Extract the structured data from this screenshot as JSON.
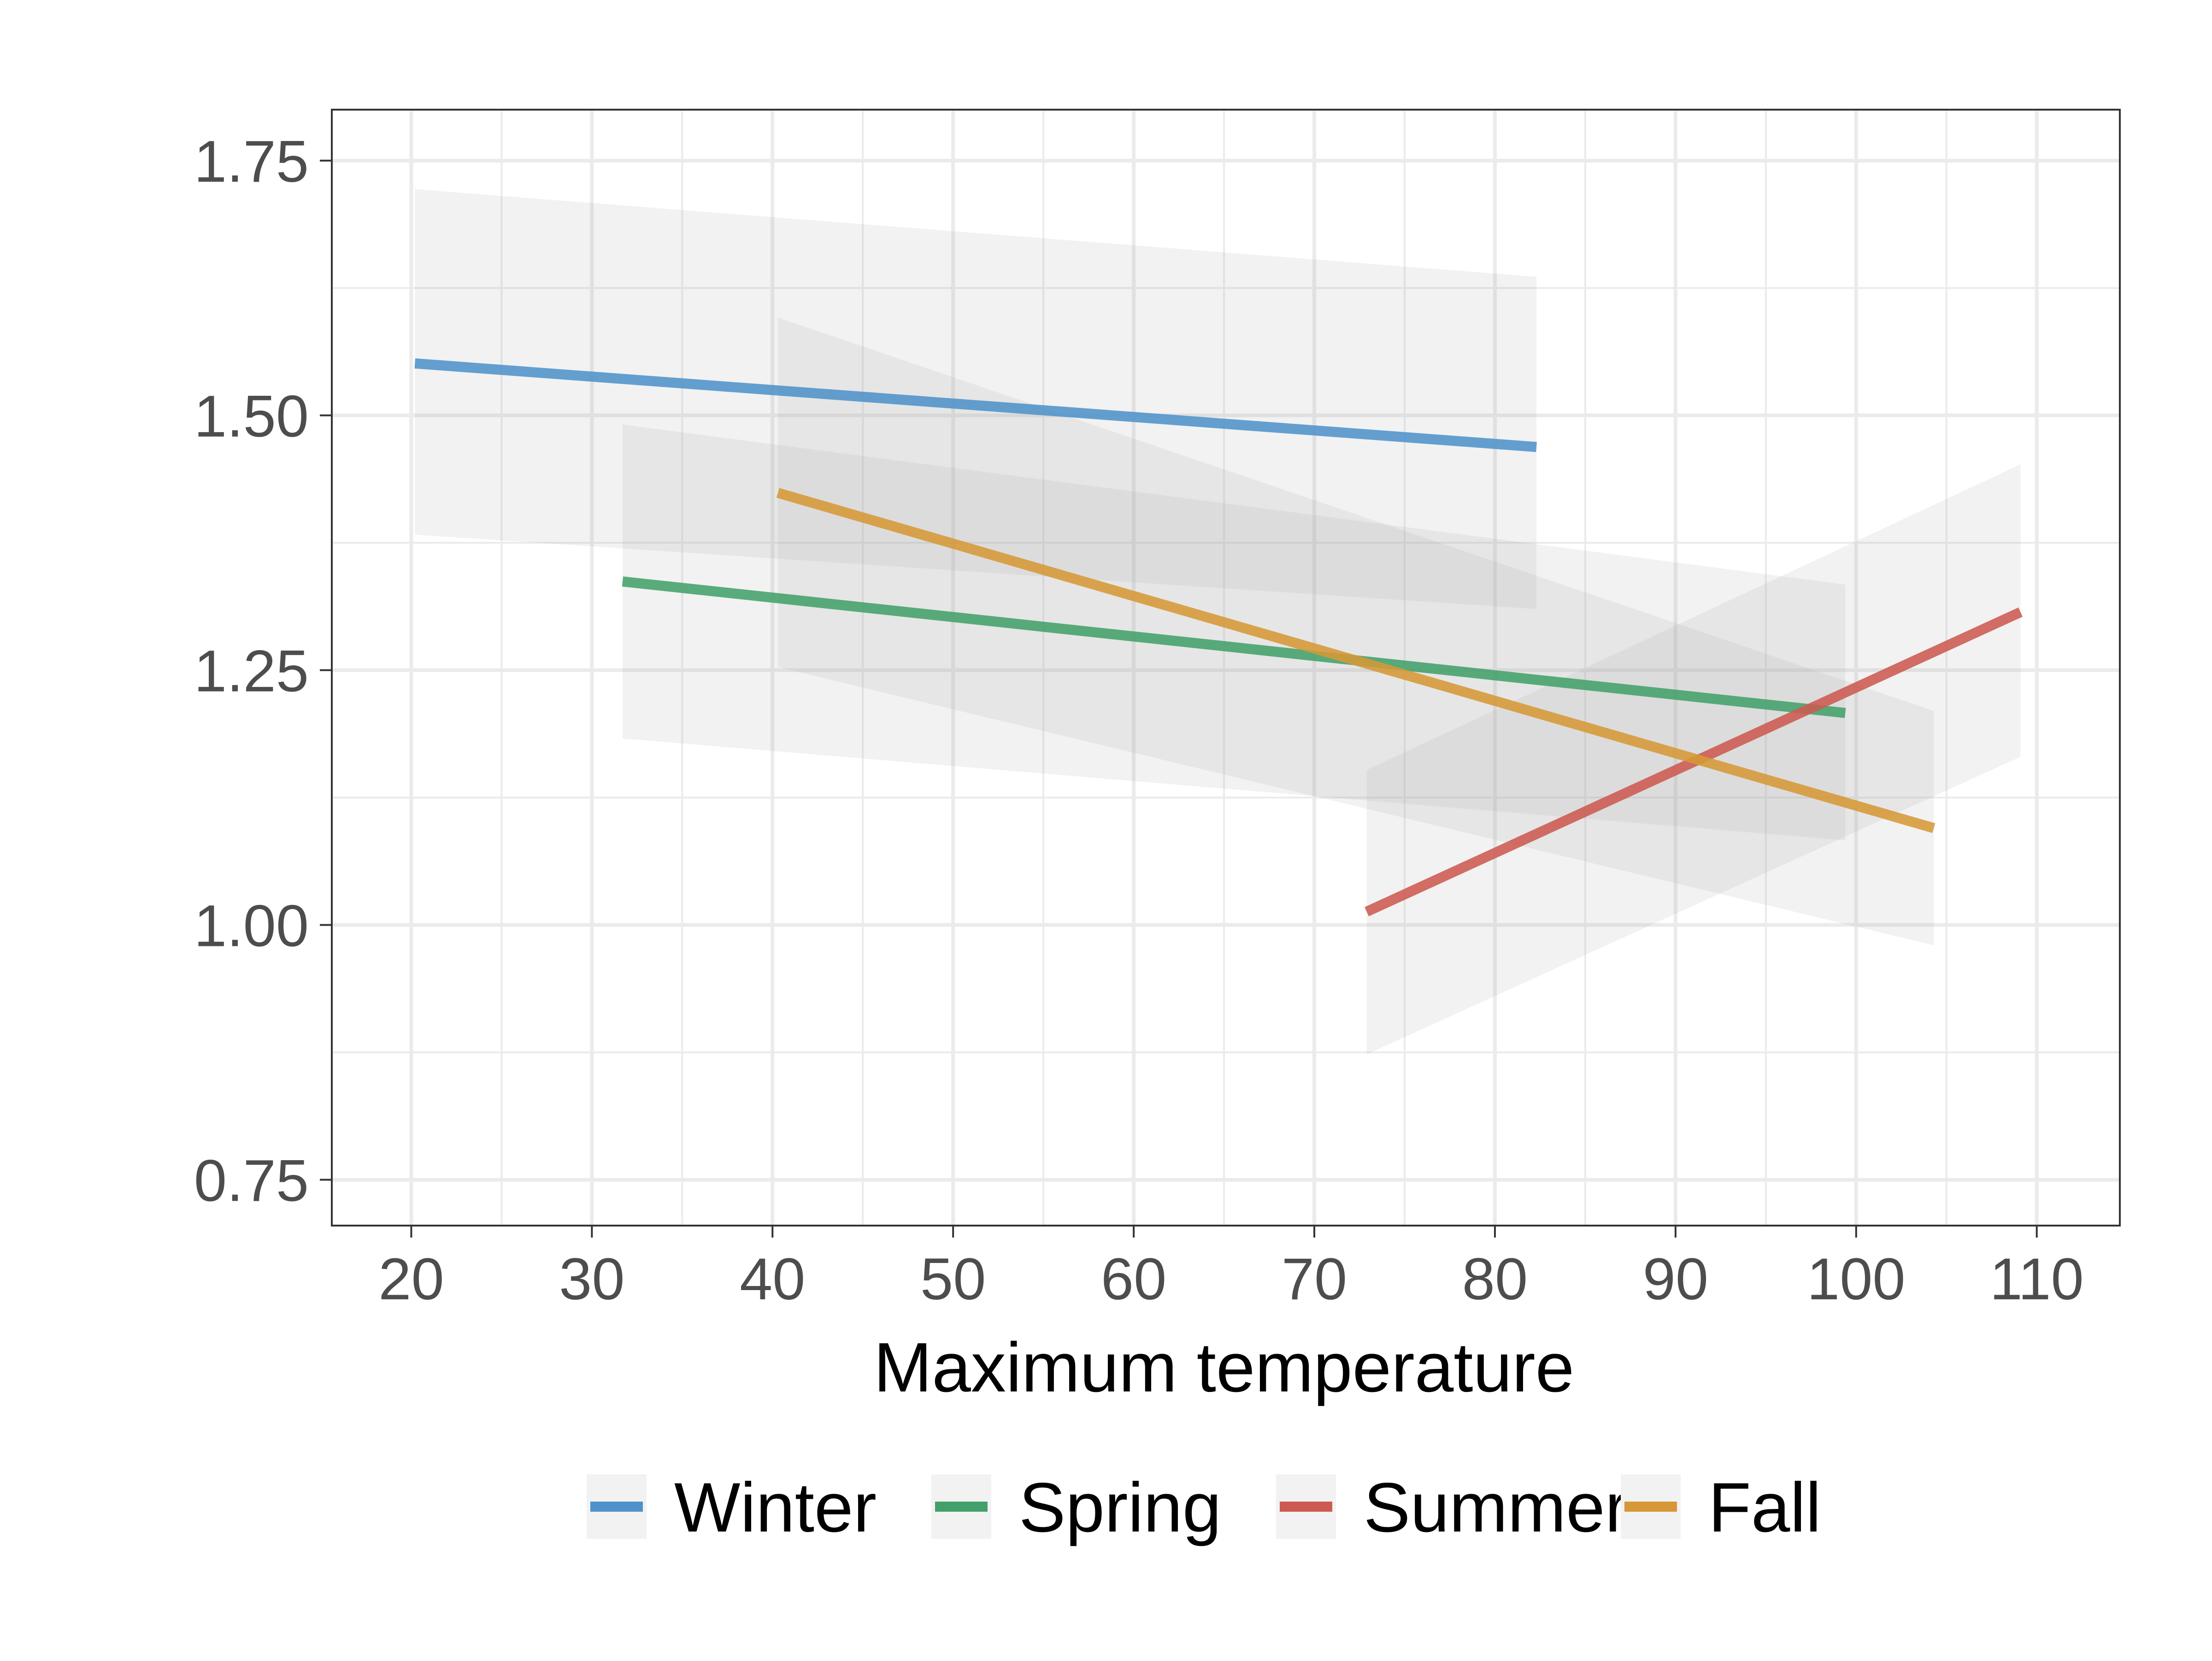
{
  "chart_data": {
    "type": "line",
    "xlabel": "Maximum temperature",
    "ylabel": "",
    "xlim": [
      15.6,
      114.6
    ],
    "ylim": [
      0.705,
      1.8
    ],
    "xticks": [
      20,
      30,
      40,
      50,
      60,
      70,
      80,
      90,
      100,
      110
    ],
    "xtick_labels": [
      "20",
      "30",
      "40",
      "50",
      "60",
      "70",
      "80",
      "90",
      "100",
      "110"
    ],
    "yticks": [
      0.75,
      1.0,
      1.25,
      1.5,
      1.75
    ],
    "ytick_labels": [
      "0.75",
      "1.00",
      "1.25",
      "1.50",
      "1.75"
    ],
    "grid": true,
    "legend_position": "bottom",
    "series": [
      {
        "name": "Winter",
        "color": "#4e92c9",
        "x": [
          20.2,
          82.3
        ],
        "y": [
          1.551,
          1.469
        ],
        "ci_lower": [
          1.383,
          1.31
        ],
        "ci_upper": [
          1.722,
          1.636
        ]
      },
      {
        "name": "Spring",
        "color": "#43a06a",
        "x": [
          31.7,
          99.4
        ],
        "y": [
          1.337,
          1.208
        ],
        "ci_lower": [
          1.183,
          1.083
        ],
        "ci_upper": [
          1.491,
          1.334
        ]
      },
      {
        "name": "Summer",
        "color": "#cc5a50",
        "x": [
          72.9,
          109.1
        ],
        "y": [
          1.013,
          1.307
        ],
        "ci_lower": [
          0.873,
          1.165
        ],
        "ci_upper": [
          1.152,
          1.452
        ]
      },
      {
        "name": "Fall",
        "color": "#d69837",
        "x": [
          40.3,
          104.3
        ],
        "y": [
          1.424,
          1.095
        ],
        "ci_lower": [
          1.253,
          0.98
        ],
        "ci_upper": [
          1.596,
          1.21
        ]
      }
    ]
  }
}
